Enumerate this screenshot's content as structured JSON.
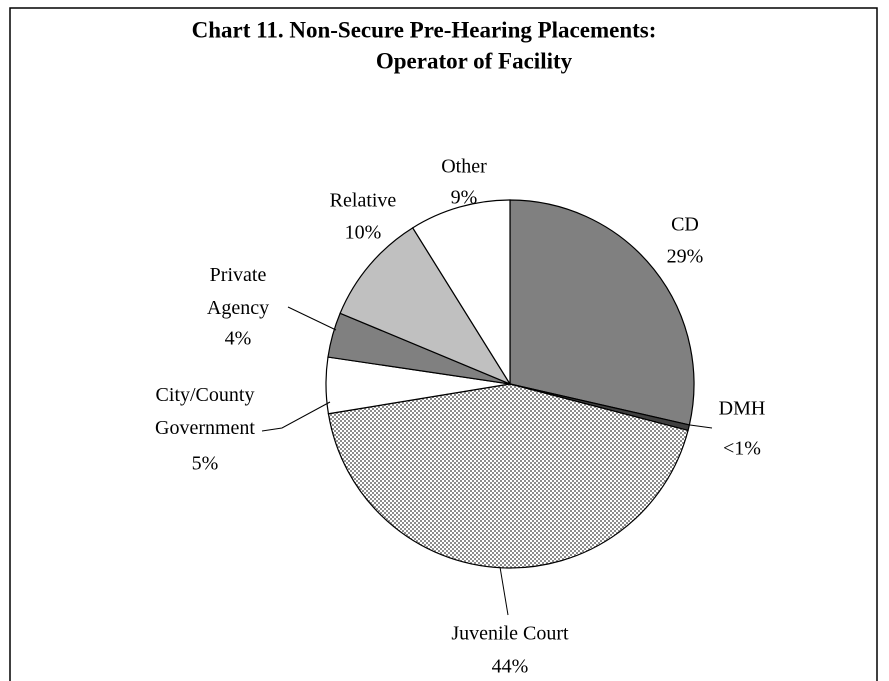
{
  "chart_data": {
    "type": "pie",
    "title": [
      "Chart 11.   Non-Secure Pre-Hearing Placements:",
      "Operator of Facility"
    ],
    "categories": [
      "CD",
      "DMH",
      "Juvenile Court",
      "City/County Government",
      "Private Agency",
      "Relative",
      "Other"
    ],
    "values": [
      29,
      0.5,
      44,
      5,
      4,
      10,
      9
    ],
    "value_labels": [
      "29%",
      "<1%",
      "44%",
      "5%",
      "4%",
      "10%",
      "9%"
    ],
    "colors": [
      "#808080",
      "#404040",
      "#a0a0a0",
      "#ffffff",
      "#808080",
      "#c0c0c0",
      "#ffffff"
    ],
    "patterns": [
      null,
      null,
      "checker",
      null,
      null,
      null,
      null
    ]
  }
}
